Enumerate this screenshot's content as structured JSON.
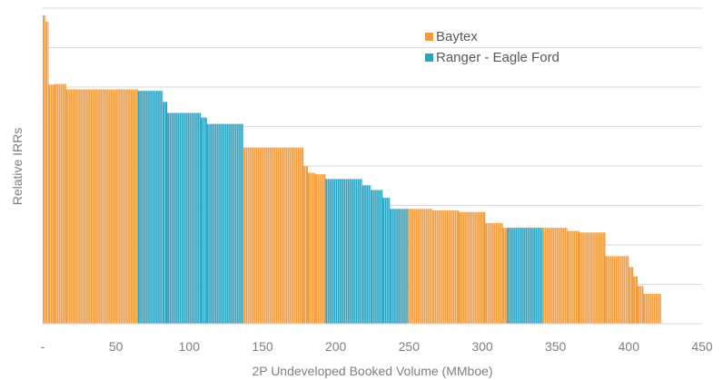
{
  "chart_data": {
    "type": "bar",
    "title": "",
    "xlabel": "2P Undeveloped Booked Volume (MMboe)",
    "ylabel": "Relative IRRs",
    "xlim": [
      0,
      450
    ],
    "x_ticks": [
      "-",
      "50",
      "100",
      "150",
      "200",
      "250",
      "300",
      "350",
      "400",
      "450"
    ],
    "y_axis_tick_labels": false,
    "grid": "horizontal",
    "legend_position": "top-center",
    "series": [
      {
        "name": "Baytex",
        "color": "#F39C3D"
      },
      {
        "name": "Ranger - Eagle Ford",
        "color": "#2EA3C1"
      }
    ],
    "segments": [
      {
        "series": "Baytex",
        "x_start": 0,
        "x_end": 2,
        "value": 9.8
      },
      {
        "series": "Baytex",
        "x_start": 2,
        "x_end": 4,
        "value": 9.6
      },
      {
        "series": "Baytex",
        "x_start": 4,
        "x_end": 8,
        "value": 7.6
      },
      {
        "series": "Baytex",
        "x_start": 8,
        "x_end": 16,
        "value": 7.62
      },
      {
        "series": "Baytex",
        "x_start": 16,
        "x_end": 65,
        "value": 7.45
      },
      {
        "series": "Ranger - Eagle Ford",
        "x_start": 65,
        "x_end": 82,
        "value": 7.4
      },
      {
        "series": "Ranger - Eagle Ford",
        "x_start": 82,
        "x_end": 85,
        "value": 7.05
      },
      {
        "series": "Ranger - Eagle Ford",
        "x_start": 85,
        "x_end": 108,
        "value": 6.7
      },
      {
        "series": "Ranger - Eagle Ford",
        "x_start": 108,
        "x_end": 112,
        "value": 6.55
      },
      {
        "series": "Ranger - Eagle Ford",
        "x_start": 112,
        "x_end": 137,
        "value": 6.35
      },
      {
        "series": "Baytex",
        "x_start": 137,
        "x_end": 178,
        "value": 5.6
      },
      {
        "series": "Baytex",
        "x_start": 178,
        "x_end": 181,
        "value": 5.0
      },
      {
        "series": "Baytex",
        "x_start": 181,
        "x_end": 186,
        "value": 4.8
      },
      {
        "series": "Baytex",
        "x_start": 186,
        "x_end": 193,
        "value": 4.75
      },
      {
        "series": "Ranger - Eagle Ford",
        "x_start": 193,
        "x_end": 218,
        "value": 4.6
      },
      {
        "series": "Ranger - Eagle Ford",
        "x_start": 218,
        "x_end": 224,
        "value": 4.4
      },
      {
        "series": "Ranger - Eagle Ford",
        "x_start": 224,
        "x_end": 232,
        "value": 4.25
      },
      {
        "series": "Ranger - Eagle Ford",
        "x_start": 232,
        "x_end": 237,
        "value": 4.0
      },
      {
        "series": "Ranger - Eagle Ford",
        "x_start": 237,
        "x_end": 249,
        "value": 3.65
      },
      {
        "series": "Baytex",
        "x_start": 249,
        "x_end": 266,
        "value": 3.65
      },
      {
        "series": "Baytex",
        "x_start": 266,
        "x_end": 284,
        "value": 3.6
      },
      {
        "series": "Baytex",
        "x_start": 284,
        "x_end": 302,
        "value": 3.55
      },
      {
        "series": "Baytex",
        "x_start": 302,
        "x_end": 314,
        "value": 3.2
      },
      {
        "series": "Baytex",
        "x_start": 314,
        "x_end": 317,
        "value": 3.05
      },
      {
        "series": "Ranger - Eagle Ford",
        "x_start": 317,
        "x_end": 341,
        "value": 3.05
      },
      {
        "series": "Baytex",
        "x_start": 341,
        "x_end": 358,
        "value": 3.05
      },
      {
        "series": "Baytex",
        "x_start": 358,
        "x_end": 366,
        "value": 2.95
      },
      {
        "series": "Baytex",
        "x_start": 366,
        "x_end": 384,
        "value": 2.9
      },
      {
        "series": "Baytex",
        "x_start": 384,
        "x_end": 400,
        "value": 2.15
      },
      {
        "series": "Baytex",
        "x_start": 400,
        "x_end": 403,
        "value": 1.8
      },
      {
        "series": "Baytex",
        "x_start": 403,
        "x_end": 406,
        "value": 1.5
      },
      {
        "series": "Baytex",
        "x_start": 406,
        "x_end": 410,
        "value": 1.2
      },
      {
        "series": "Baytex",
        "x_start": 410,
        "x_end": 422,
        "value": 0.95
      }
    ]
  }
}
